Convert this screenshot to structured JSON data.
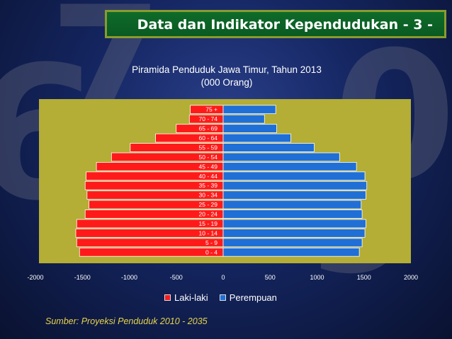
{
  "header": {
    "title": "Data dan Indikator Kependudukan - 3 -"
  },
  "chart_data": {
    "type": "bar",
    "orientation": "horizontal-pyramid",
    "title": "Piramida Penduduk Jawa Timur, Tahun 2013",
    "subtitle": "(000 Orang)",
    "categories": [
      "0 - 4",
      "5 - 9",
      "10 - 14",
      "15 - 19",
      "20 - 24",
      "25 - 29",
      "30 - 34",
      "35 - 39",
      "40 - 44",
      "45 - 49",
      "50 - 54",
      "55 - 59",
      "60 - 64",
      "65 - 69",
      "70 - 74",
      "75 +"
    ],
    "series": [
      {
        "name": "Laki-laki",
        "color": "#ff1a1a",
        "values": [
          -1530,
          -1560,
          -1570,
          -1560,
          -1470,
          -1430,
          -1450,
          -1470,
          -1460,
          -1350,
          -1190,
          -990,
          -720,
          -500,
          -360,
          -350
        ]
      },
      {
        "name": "Perempuan",
        "color": "#1f6fd6",
        "values": [
          1450,
          1480,
          1510,
          1520,
          1480,
          1470,
          1520,
          1530,
          1510,
          1420,
          1240,
          970,
          720,
          570,
          440,
          560
        ]
      }
    ],
    "xlim": [
      -2000,
      2000
    ],
    "xticks": [
      -2000,
      -1500,
      -1000,
      -500,
      0,
      500,
      1000,
      1500,
      2000
    ],
    "grid": false,
    "legend": "bottom"
  },
  "footer": {
    "source": "Sumber: Proyeksi Penduduk 2010 - 2035"
  },
  "colors": {
    "plot_area": "#b4ad36",
    "title_bar": "#0e6b2a",
    "title_border": "#8a9b2c",
    "source_text": "#e8d44a"
  }
}
